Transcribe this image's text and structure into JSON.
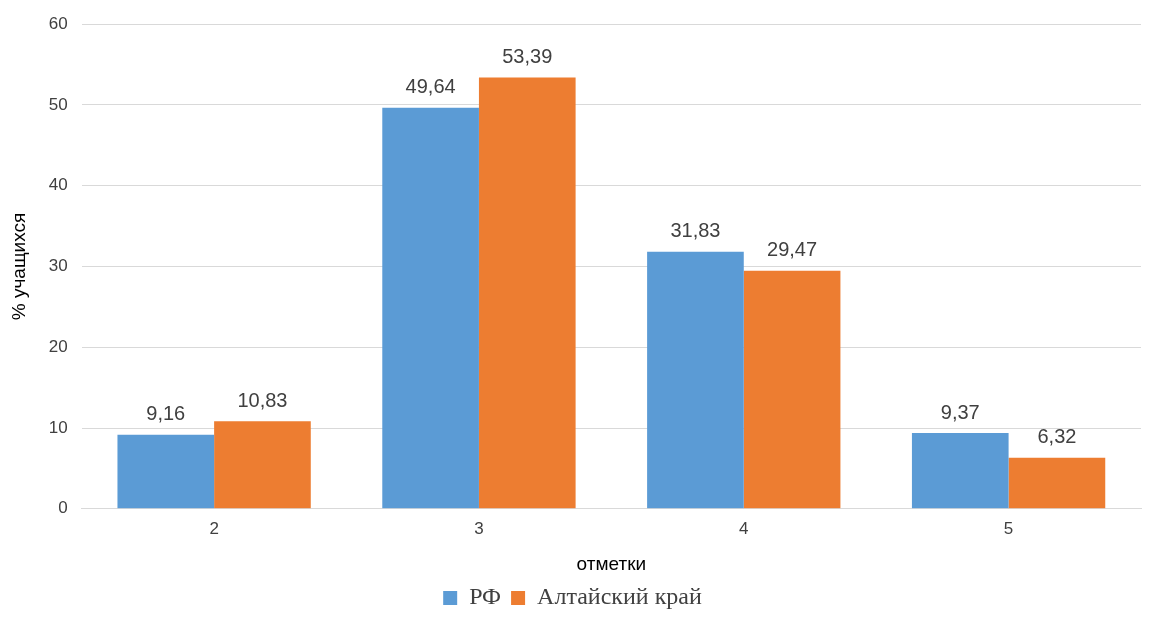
{
  "chart_data": {
    "type": "bar",
    "xlabel": "отметки",
    "ylabel": "% учащихся",
    "categories": [
      "2",
      "3",
      "4",
      "5"
    ],
    "series": [
      {
        "name": "РФ",
        "color": "#5b9bd5",
        "values": [
          9.16,
          49.64,
          31.83,
          9.37
        ],
        "value_labels": [
          "9,16",
          "49,64",
          "31,83",
          "9,37"
        ]
      },
      {
        "name": "Алтайский край",
        "color": "#ed7d31",
        "values": [
          10.83,
          53.39,
          29.47,
          6.32
        ],
        "value_labels": [
          "10,83",
          "53,39",
          "29,47",
          "6,32"
        ]
      }
    ],
    "ylim": [
      0,
      60
    ],
    "yticks": [
      0,
      10,
      20,
      30,
      40,
      50,
      60
    ],
    "grid": "y",
    "legend": "bottom"
  }
}
